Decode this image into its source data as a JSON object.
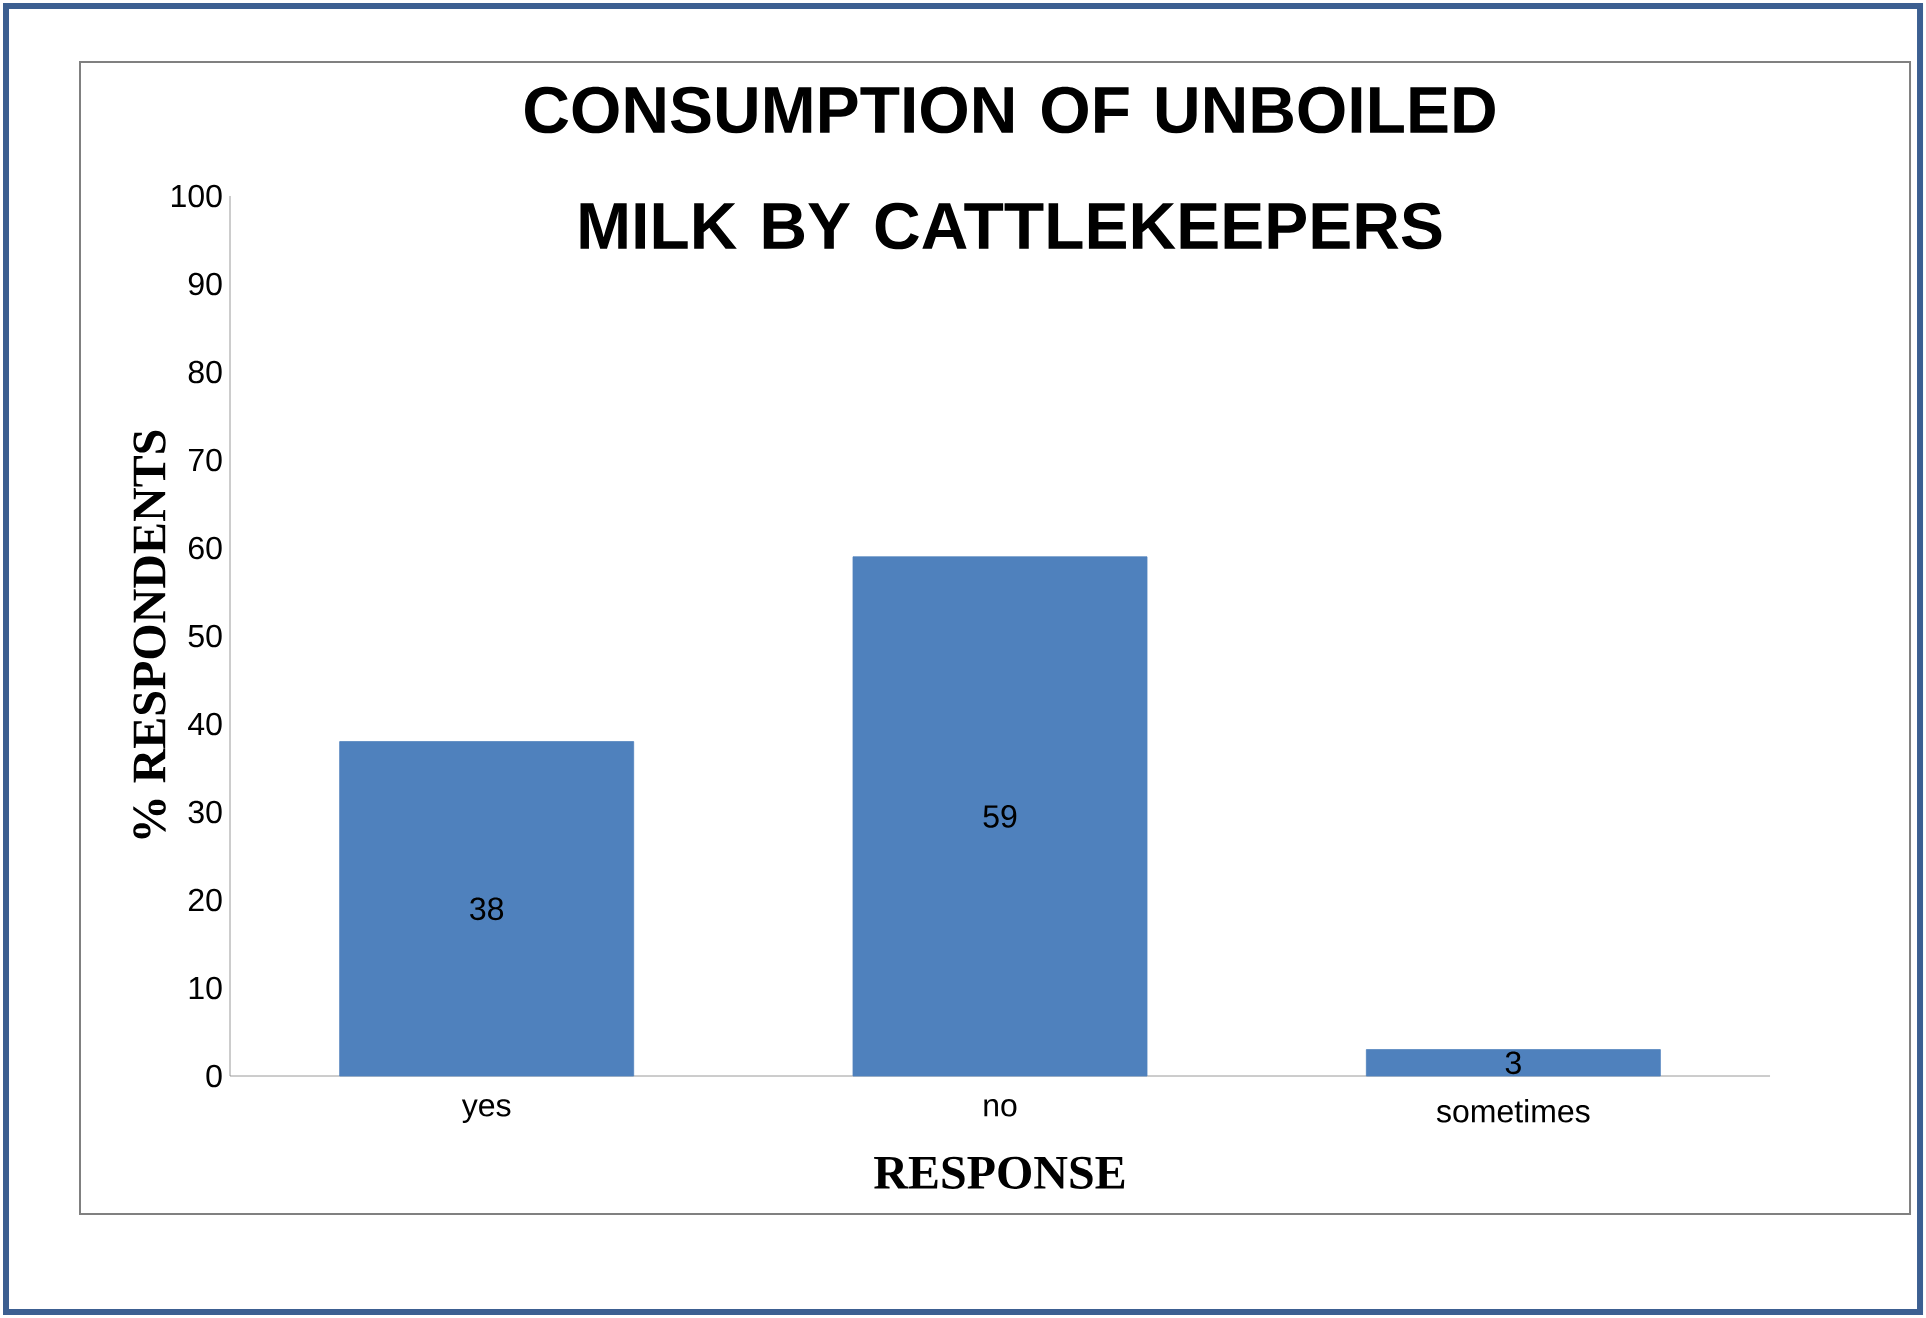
{
  "chart_data": {
    "type": "bar",
    "title": "CONSUMPTION OF UNBOILED MILK BY CATTLEKEEPERS",
    "xlabel": "RESPONSE",
    "ylabel": "% RESPONDENTS",
    "categories": [
      "yes",
      "no",
      "sometimes"
    ],
    "values": [
      38,
      59,
      3
    ],
    "color": "#4f81bd",
    "ylim": [
      0,
      100
    ],
    "yticks": [
      0,
      10,
      20,
      30,
      40,
      50,
      60,
      70,
      80,
      90,
      100
    ],
    "data_labels": true,
    "grid": false
  }
}
